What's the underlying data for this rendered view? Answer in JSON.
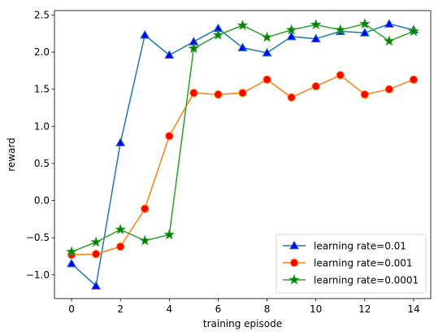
{
  "chart_data": {
    "type": "line",
    "title": "",
    "xlabel": "training episode",
    "ylabel": "reward",
    "xlim": [
      -0.7,
      14.7
    ],
    "ylim": [
      -1.32,
      2.56
    ],
    "xticks": [
      0,
      2,
      4,
      6,
      8,
      10,
      12,
      14
    ],
    "yticks": [
      -1.0,
      -0.5,
      0.0,
      0.5,
      1.0,
      1.5,
      2.0,
      2.5
    ],
    "grid": false,
    "legend_position": "lower-right",
    "x": [
      0,
      1,
      2,
      3,
      4,
      5,
      6,
      7,
      8,
      9,
      10,
      11,
      12,
      13,
      14
    ],
    "series": [
      {
        "name": "learning rate=0.01",
        "color": "#1f77b4",
        "marker": "triangle",
        "marker_fill": "#0000ff",
        "values": [
          -0.85,
          -1.15,
          0.78,
          2.23,
          1.96,
          2.14,
          2.32,
          2.06,
          1.99,
          2.21,
          2.18,
          2.28,
          2.26,
          2.38,
          2.3
        ]
      },
      {
        "name": "learning rate=0.001",
        "color": "#ff7f0e",
        "marker": "circle",
        "marker_fill": "#ff0000",
        "values": [
          -0.73,
          -0.72,
          -0.62,
          -0.11,
          0.87,
          1.45,
          1.43,
          1.45,
          1.63,
          1.39,
          1.54,
          1.69,
          1.43,
          1.5,
          1.63
        ]
      },
      {
        "name": "learning rate=0.0001",
        "color": "#2ca02c",
        "marker": "star",
        "marker_fill": "#008000",
        "values": [
          -0.69,
          -0.56,
          -0.39,
          -0.54,
          -0.46,
          2.05,
          2.23,
          2.36,
          2.2,
          2.3,
          2.37,
          2.3,
          2.38,
          2.15,
          2.28
        ]
      }
    ]
  }
}
